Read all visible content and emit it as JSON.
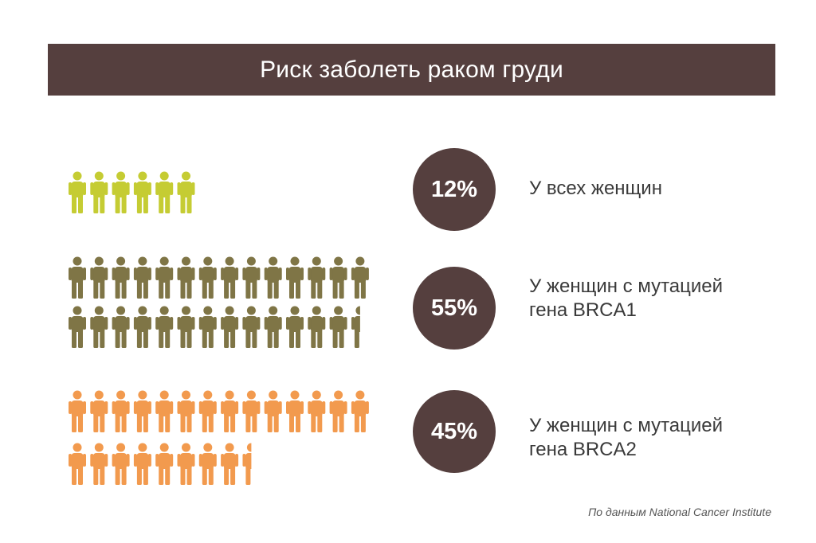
{
  "title": "Риск заболеть раком груди",
  "source": "По данным National Cancer Institute",
  "chart_data": {
    "type": "pictogram",
    "unit": "%",
    "rows": [
      {
        "label_lines": [
          "У всех женщин"
        ],
        "value": 12,
        "value_label": "12%",
        "color": "#c5cc33"
      },
      {
        "label_lines": [
          "У женщин с мутацией",
          "гена BRCA1"
        ],
        "value": 55,
        "value_label": "55%",
        "color": "#7f7546"
      },
      {
        "label_lines": [
          "У женщин с мутацией",
          "гена BRCA2"
        ],
        "value": 45,
        "value_label": "45%",
        "color": "#f29a4e"
      }
    ]
  },
  "colors": {
    "header_bg": "#553f3e",
    "badge_bg": "#553f3e"
  }
}
